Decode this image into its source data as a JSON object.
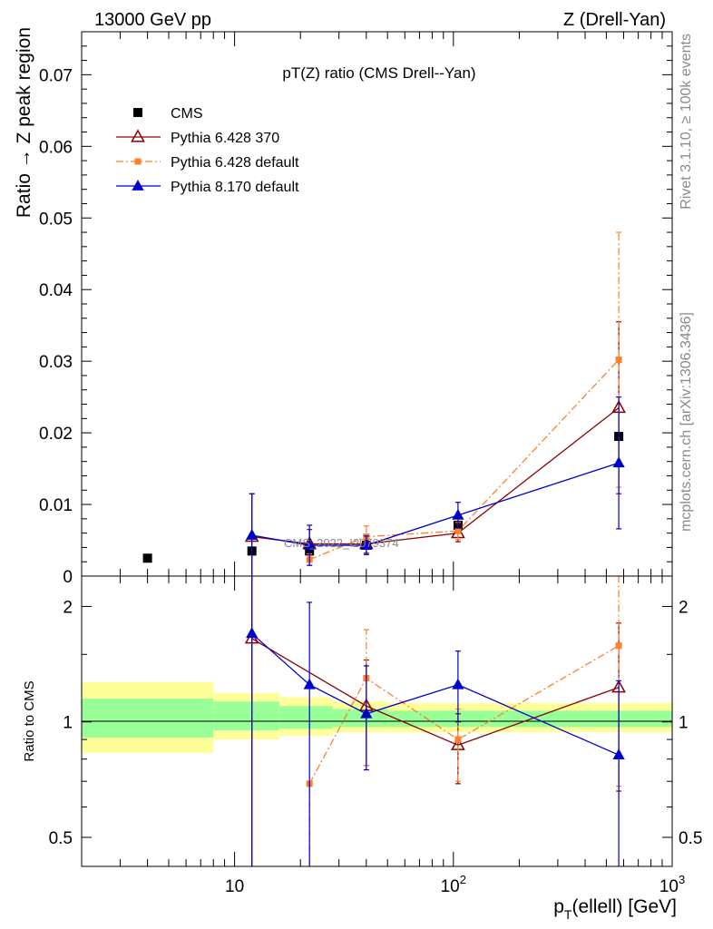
{
  "header": {
    "left": "13000 GeV pp",
    "right": "Z (Drell-Yan)"
  },
  "side_text": {
    "rivet": "Rivet 3.1.10, ≥ 100k events",
    "mcplots": "mcplots.cern.ch [arXiv:1306.3436]"
  },
  "chart_data": [
    {
      "type": "scatter",
      "title": "pT(Z) ratio (CMS Drell--Yan)",
      "ylabel": "Ratio → Z peak region",
      "xscale": "log",
      "xlim": [
        2,
        1000
      ],
      "ylim": [
        0,
        0.076
      ],
      "yticks": [
        "0",
        "0.01",
        "0.02",
        "0.03",
        "0.04",
        "0.05",
        "0.06",
        "0.07"
      ],
      "watermark": "CMS_2022_I2079374",
      "legend_position": "top-left",
      "series": [
        {
          "name": "CMS",
          "color": "#000000",
          "marker": "filled-square",
          "line": "none",
          "x": [
            4,
            12,
            22,
            40,
            105,
            570
          ],
          "y": [
            0.0025,
            0.0035,
            0.0035,
            0.0043,
            0.0071,
            0.0195
          ]
        },
        {
          "name": "Pythia 6.428 370",
          "color": "#8b0000",
          "marker": "open-triangle",
          "line": "solid",
          "x": [
            12,
            22,
            40,
            105,
            570
          ],
          "y": [
            0.0055,
            0.0045,
            0.0045,
            0.006,
            0.0235
          ],
          "yerr": [
            0.006,
            0.002,
            0.0013,
            0.0012,
            0.012
          ]
        },
        {
          "name": "Pythia 6.428 default",
          "color": "#ff7f2a",
          "marker": "filled-square",
          "line": "dashdot",
          "x": [
            22,
            40,
            105,
            570
          ],
          "y": [
            0.0023,
            0.0055,
            0.0063,
            0.0302
          ],
          "yerr": [
            0.0008,
            0.0015,
            0.0012,
            0.0178
          ]
        },
        {
          "name": "Pythia 8.170 default",
          "color": "#0000cc",
          "marker": "filled-triangle",
          "line": "solid",
          "x": [
            12,
            22,
            40,
            105,
            570
          ],
          "y": [
            0.0057,
            0.0043,
            0.0043,
            0.0085,
            0.0158
          ],
          "yerr": [
            0.0058,
            0.0028,
            0.0013,
            0.0018,
            0.0092
          ]
        }
      ]
    },
    {
      "type": "line",
      "ylabel": "Ratio to CMS",
      "xlabel": "p_T(ellell) [GeV]",
      "xscale": "log",
      "xlim": [
        2,
        1000
      ],
      "ylim": [
        0.42,
        2.4
      ],
      "xticks": [
        {
          "value": 10,
          "base": "10",
          "exp": ""
        },
        {
          "value": 100,
          "base": "10",
          "exp": "2"
        },
        {
          "value": 1000,
          "base": "10",
          "exp": "3"
        }
      ],
      "yticks": [
        "0.5",
        "1",
        "2"
      ],
      "bands": {
        "bin_edges": [
          2,
          8,
          16,
          28,
          50,
          160,
          1000
        ],
        "yellow": [
          [
            0.83,
            1.27
          ],
          [
            0.9,
            1.19
          ],
          [
            0.92,
            1.16
          ],
          [
            0.94,
            1.13
          ],
          [
            0.94,
            1.12
          ],
          [
            0.94,
            1.12
          ]
        ],
        "green": [
          [
            0.91,
            1.15
          ],
          [
            0.95,
            1.13
          ],
          [
            0.96,
            1.1
          ],
          [
            0.97,
            1.08
          ],
          [
            0.97,
            1.07
          ],
          [
            0.97,
            1.07
          ]
        ],
        "yellow_color": "#ffff99",
        "green_color": "#99ff99"
      },
      "series": [
        {
          "name": "Pythia 6.428 370",
          "color": "#8b0000",
          "marker": "open-triangle",
          "line": "solid",
          "x": [
            12,
            40,
            105,
            570
          ],
          "y": [
            1.65,
            1.1,
            0.87,
            1.23
          ],
          "err_lo": [
            0.42,
            0.77,
            0.69,
            0.66
          ],
          "err_hi": [
            2.4,
            1.45,
            1.05,
            1.81
          ]
        },
        {
          "name": "Pythia 6.428 default",
          "color": "#ff7f2a",
          "marker": "filled-square",
          "line": "dashdot",
          "x": [
            22,
            40,
            105,
            570
          ],
          "y": [
            0.69,
            1.3,
            0.9,
            1.58
          ],
          "err_lo": [
            0.42,
            0.77,
            0.7,
            0.68
          ],
          "err_hi": [
            0.69,
            1.74,
            1.08,
            2.4
          ]
        },
        {
          "name": "Pythia 8.170 default",
          "color": "#0000cc",
          "marker": "filled-triangle",
          "line": "solid",
          "x": [
            12,
            22,
            40,
            105,
            570
          ],
          "y": [
            1.7,
            1.25,
            1.05,
            1.25,
            0.82
          ],
          "err_lo": [
            0.42,
            0.42,
            0.75,
            1.0,
            0.42
          ],
          "err_hi": [
            2.4,
            2.05,
            1.4,
            1.53,
            1.28
          ]
        }
      ]
    }
  ]
}
